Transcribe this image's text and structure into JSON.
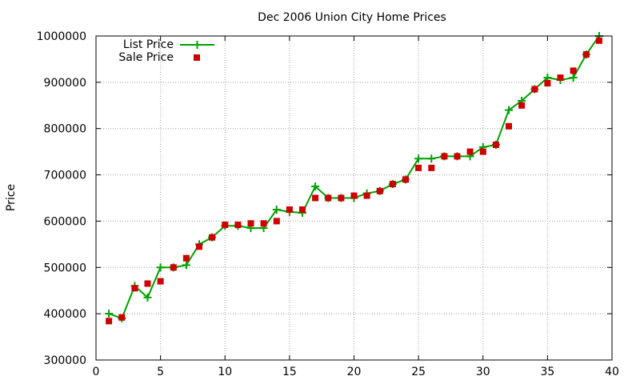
{
  "chart_data": {
    "type": "line",
    "title": "Dec 2006 Union City Home Prices",
    "xlabel": "",
    "ylabel": "Price",
    "xlim": [
      0,
      40
    ],
    "ylim": [
      300000,
      1000000
    ],
    "x_ticks": [
      0,
      5,
      10,
      15,
      20,
      25,
      30,
      35,
      40
    ],
    "y_ticks": [
      300000,
      400000,
      500000,
      600000,
      700000,
      800000,
      900000,
      1000000
    ],
    "grid": true,
    "legend_position": "top-left",
    "series": [
      {
        "name": "List Price",
        "style": "line-with-plus-markers",
        "color": "#00a000",
        "x": [
          1,
          2,
          3,
          4,
          5,
          6,
          7,
          8,
          9,
          10,
          11,
          12,
          13,
          14,
          15,
          16,
          17,
          18,
          19,
          20,
          21,
          22,
          23,
          24,
          25,
          26,
          27,
          28,
          29,
          30,
          31,
          32,
          33,
          34,
          35,
          36,
          37,
          38,
          39
        ],
        "values": [
          400000,
          390000,
          460000,
          435000,
          500000,
          500000,
          505000,
          550000,
          565000,
          590000,
          590000,
          585000,
          585000,
          625000,
          620000,
          618000,
          675000,
          650000,
          650000,
          650000,
          660000,
          665000,
          680000,
          690000,
          735000,
          735000,
          740000,
          740000,
          740000,
          760000,
          765000,
          840000,
          860000,
          885000,
          910000,
          905000,
          910000,
          960000,
          1000000
        ]
      },
      {
        "name": "Sale Price",
        "style": "square-markers",
        "color": "#cc0000",
        "x": [
          1,
          2,
          3,
          4,
          5,
          6,
          7,
          8,
          9,
          10,
          11,
          12,
          13,
          14,
          15,
          16,
          17,
          18,
          19,
          20,
          21,
          22,
          23,
          24,
          25,
          26,
          27,
          28,
          29,
          30,
          31,
          32,
          33,
          34,
          35,
          36,
          37,
          38,
          39
        ],
        "values": [
          384000,
          392000,
          455000,
          465000,
          470000,
          500000,
          520000,
          545000,
          565000,
          592000,
          592000,
          595000,
          595000,
          600000,
          625000,
          625000,
          650000,
          650000,
          650000,
          655000,
          655000,
          665000,
          680000,
          690000,
          715000,
          715000,
          740000,
          740000,
          750000,
          750000,
          765000,
          805000,
          850000,
          885000,
          898000,
          910000,
          925000,
          960000,
          990000
        ]
      }
    ]
  }
}
